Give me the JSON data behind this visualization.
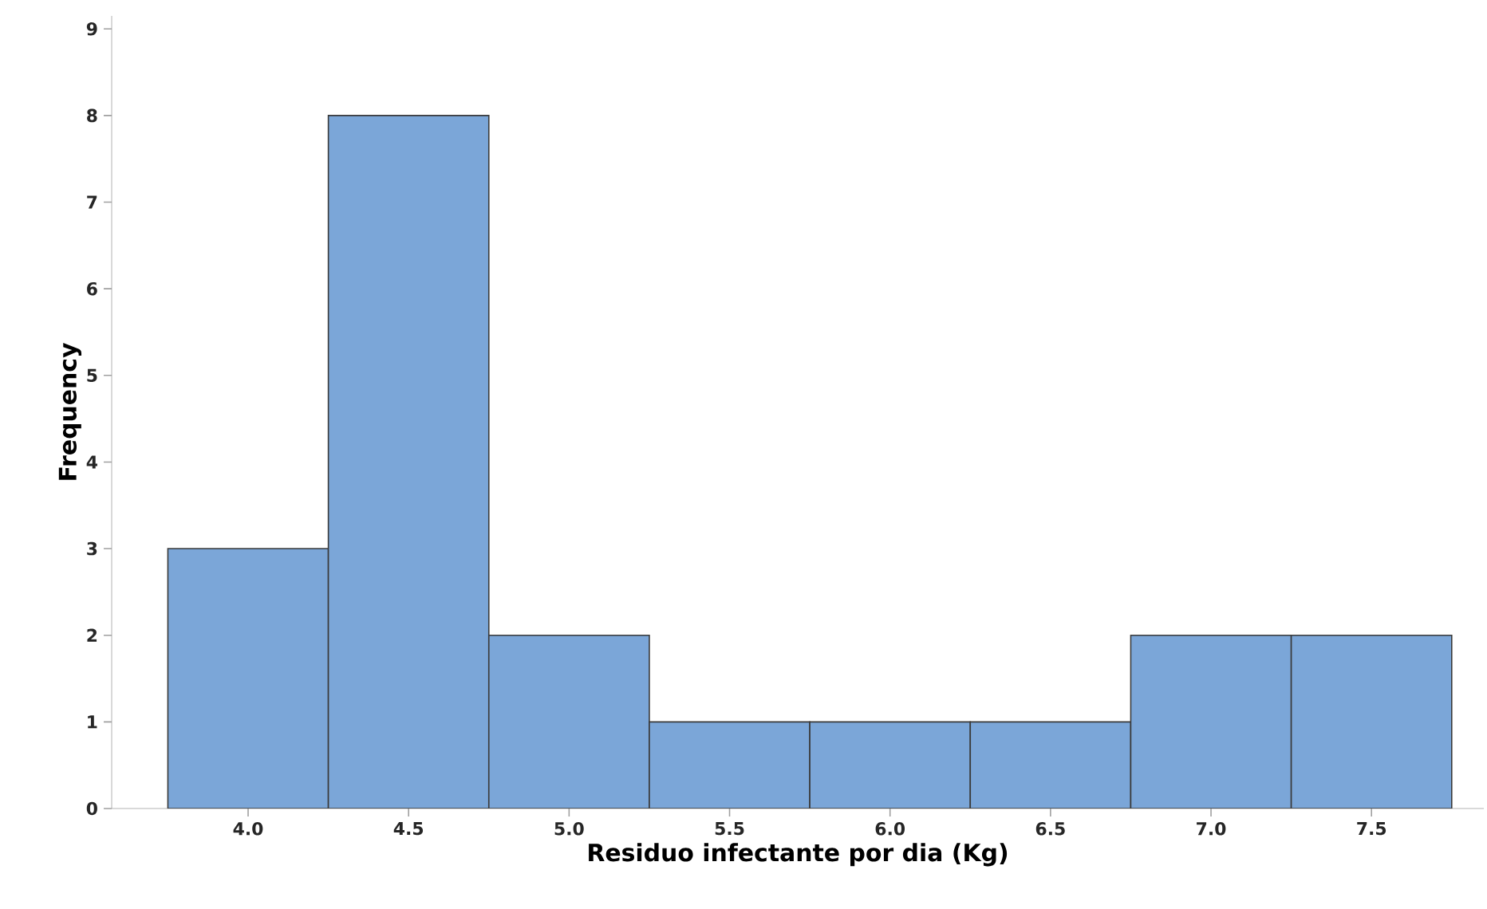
{
  "chart_data": {
    "type": "histogram",
    "xlabel": "Residuo infectante por dia (Kg)",
    "ylabel": "Frequency",
    "bins": [
      3.75,
      4.25,
      4.75,
      5.25,
      5.75,
      6.25,
      6.75,
      7.25,
      7.75
    ],
    "values": [
      3,
      8,
      2,
      1,
      1,
      1,
      2,
      2
    ],
    "color": "#7ba6d8",
    "xlim": [
      3.575,
      7.85
    ],
    "ylim": [
      0,
      9.15
    ],
    "xticks": [
      {
        "value": 4,
        "label": "4.0"
      },
      {
        "value": 4.5,
        "label": "4.5"
      },
      {
        "value": 5,
        "label": "5.0"
      },
      {
        "value": 5.5,
        "label": "5.5"
      },
      {
        "value": 6,
        "label": "6.0"
      },
      {
        "value": 6.5,
        "label": "6.5"
      },
      {
        "value": 7,
        "label": "7.0"
      },
      {
        "value": 7.5,
        "label": "7.5"
      }
    ],
    "yticks": [
      0,
      1,
      2,
      3,
      4,
      5,
      6,
      7,
      8,
      9
    ],
    "grid": false
  }
}
